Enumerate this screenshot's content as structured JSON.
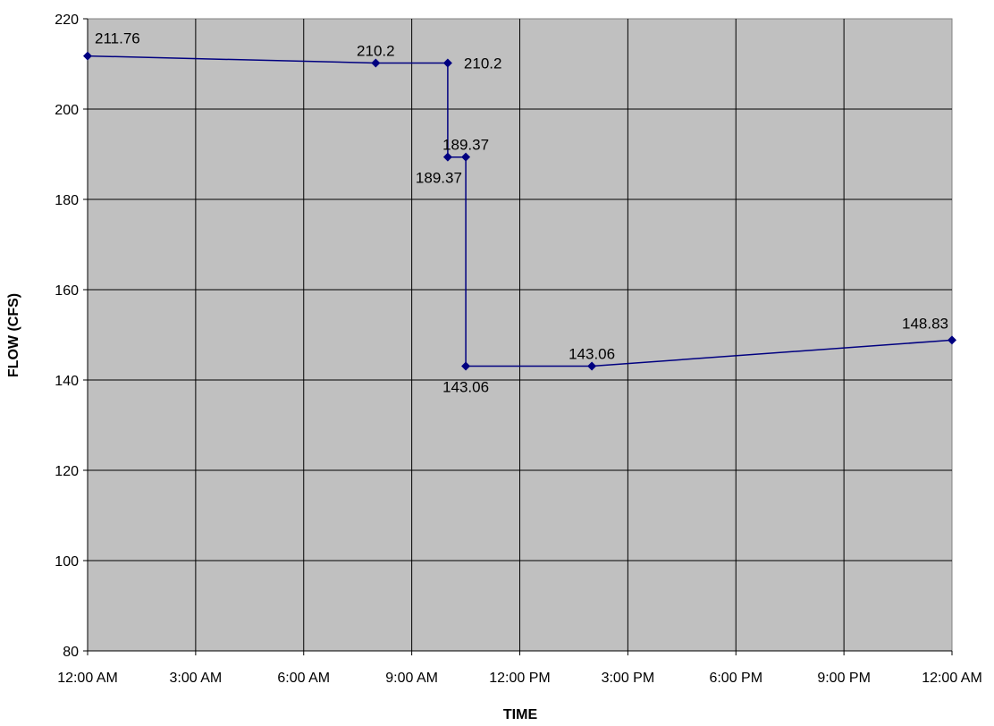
{
  "chart_data": {
    "type": "line",
    "title": "",
    "xlabel": "TIME",
    "ylabel": "FLOW (CFS)",
    "ylim": [
      80,
      220
    ],
    "y_ticks": [
      80,
      100,
      120,
      140,
      160,
      180,
      200,
      220
    ],
    "xlim_hours": [
      0,
      24
    ],
    "x_ticks": [
      {
        "hour": 0,
        "label": "12:00 AM"
      },
      {
        "hour": 3,
        "label": "3:00 AM"
      },
      {
        "hour": 6,
        "label": "6:00 AM"
      },
      {
        "hour": 9,
        "label": "9:00 AM"
      },
      {
        "hour": 12,
        "label": "12:00 PM"
      },
      {
        "hour": 15,
        "label": "3:00 PM"
      },
      {
        "hour": 18,
        "label": "6:00 PM"
      },
      {
        "hour": 21,
        "label": "9:00 PM"
      },
      {
        "hour": 24,
        "label": "12:00 AM"
      }
    ],
    "grid": true,
    "plot_background": "#c0c0c0",
    "series": [
      {
        "color": "#000080",
        "points": [
          {
            "hour": 0,
            "y": 211.76,
            "label": "211.76",
            "label_pos": "above-right"
          },
          {
            "hour": 8,
            "y": 210.2,
            "label": "210.2",
            "label_pos": "above"
          },
          {
            "hour": 10,
            "y": 210.2,
            "label": "210.2",
            "label_pos": "right"
          },
          {
            "hour": 10,
            "y": 189.37,
            "label": "189.37",
            "label_pos": "below-left"
          },
          {
            "hour": 10.5,
            "y": 189.37,
            "label": "189.37",
            "label_pos": "above"
          },
          {
            "hour": 10.5,
            "y": 143.06,
            "label": "143.06",
            "label_pos": "below"
          },
          {
            "hour": 14,
            "y": 143.06,
            "label": "143.06",
            "label_pos": "above"
          },
          {
            "hour": 24,
            "y": 148.83,
            "label": "148.83",
            "label_pos": "above-left"
          }
        ]
      }
    ]
  }
}
